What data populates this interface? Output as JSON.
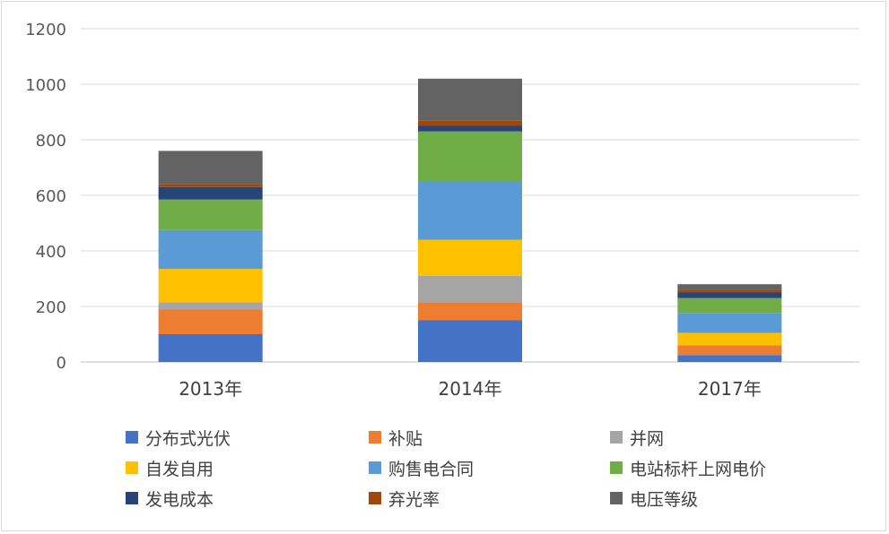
{
  "chart_data": {
    "type": "bar",
    "stacked": true,
    "categories": [
      "2013年",
      "2014年",
      "2017年"
    ],
    "ylim": [
      0,
      1200
    ],
    "yticks": [
      0,
      200,
      400,
      600,
      800,
      1000,
      1200
    ],
    "grid": true,
    "legend_position": "bottom",
    "series": [
      {
        "name": "分布式光伏",
        "color": "#4472C4",
        "values": [
          100,
          150,
          25
        ]
      },
      {
        "name": "补贴",
        "color": "#ED7D31",
        "values": [
          90,
          65,
          35
        ]
      },
      {
        "name": "并网",
        "color": "#A5A5A5",
        "values": [
          25,
          95,
          0
        ]
      },
      {
        "name": "自发自用",
        "color": "#FFC000",
        "values": [
          120,
          130,
          45
        ]
      },
      {
        "name": "购售电合同",
        "color": "#5B9BD5",
        "values": [
          140,
          210,
          70
        ]
      },
      {
        "name": "电站标杆上网电价",
        "color": "#70AD47",
        "values": [
          110,
          180,
          55
        ]
      },
      {
        "name": "发电成本",
        "color": "#264478",
        "values": [
          45,
          20,
          20
        ]
      },
      {
        "name": "弃光率",
        "color": "#9E480E",
        "values": [
          10,
          20,
          10
        ]
      },
      {
        "name": "电压等级",
        "color": "#636363",
        "values": [
          120,
          150,
          20
        ]
      }
    ]
  }
}
